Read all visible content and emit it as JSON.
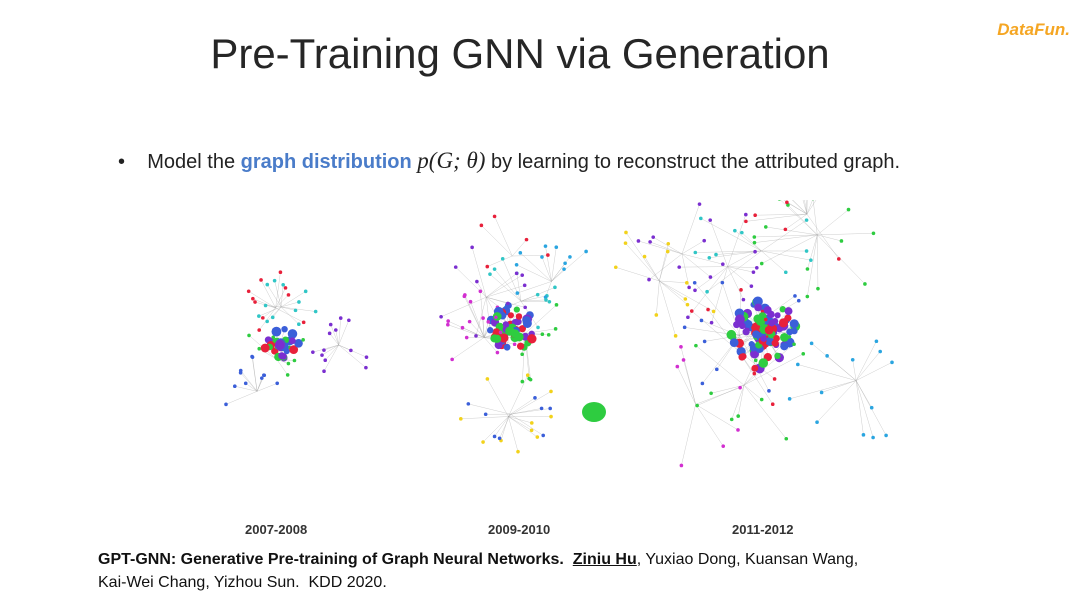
{
  "header": {
    "title": "Pre-Training GNN via Generation",
    "logo": "DataFun."
  },
  "bullet": {
    "text_before": "Model the ",
    "highlight": "graph distribution",
    "formula": "p(G; θ)",
    "text_after": " by learning to reconstruct the attributed graph."
  },
  "figure": {
    "labels": [
      "2007-2008",
      "2009-2010",
      "2011-2012"
    ]
  },
  "citation": {
    "title": "GPT-GNN: Generative Pre-training of Graph Neural Networks.",
    "first_author": "Ziniu Hu",
    "line1_rest": ", Yuxiao Dong, Kuansan Wang,",
    "line2": "Kai-Wei Chang, Yizhou Sun.  KDD 2020."
  }
}
